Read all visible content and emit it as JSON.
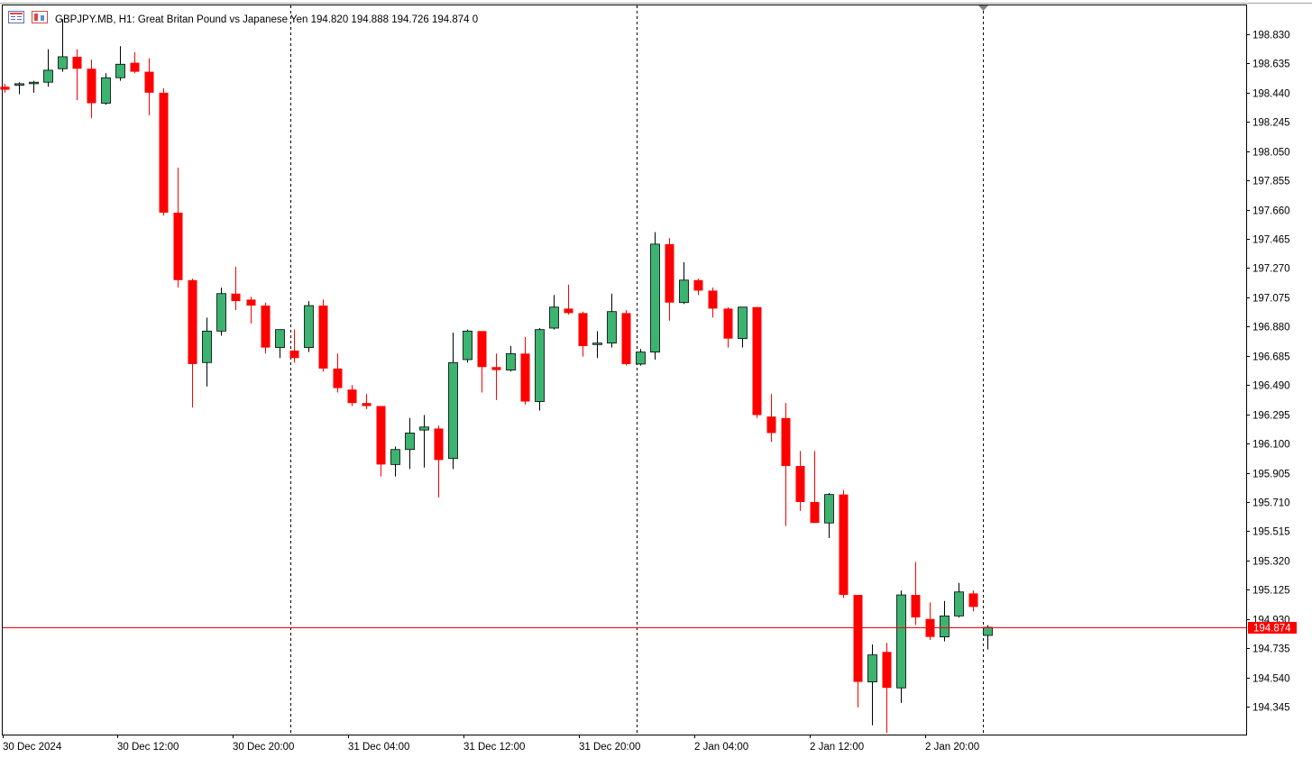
{
  "header": {
    "symbol": "GBPJPY.MB",
    "timeframe": "H1",
    "description": "Great Britan Pound vs Japanese Yen",
    "open": "194.820",
    "high": "194.888",
    "low": "194.726",
    "close": "194.874",
    "volume": "0"
  },
  "current_price_label": "194.874",
  "colors": {
    "bull": "#3cb371",
    "bear": "#ff0000",
    "outline": "#000000",
    "price_line": "#ff0000",
    "grid_separator": "#000000",
    "background": "#ffffff"
  },
  "chart_data": {
    "type": "candlestick",
    "title": "GBPJPY.MB, H1",
    "price_axis_ticks": [
      "198.830",
      "198.635",
      "198.440",
      "198.245",
      "198.050",
      "197.855",
      "197.660",
      "197.465",
      "197.270",
      "197.075",
      "196.880",
      "196.685",
      "196.490",
      "196.295",
      "196.100",
      "195.905",
      "195.710",
      "195.515",
      "195.320",
      "195.125",
      "194.930",
      "194.735",
      "194.540",
      "194.345"
    ],
    "time_axis_ticks": [
      "30 Dec 2024",
      "30 Dec 12:00",
      "30 Dec 20:00",
      "31 Dec 04:00",
      "31 Dec 12:00",
      "31 Dec 20:00",
      "2 Jan 04:00",
      "2 Jan 12:00",
      "2 Jan 20:00"
    ],
    "current_price": 194.874,
    "candles": [
      {
        "o": 198.48,
        "h": 198.5,
        "l": 198.44,
        "c": 198.46
      },
      {
        "o": 198.49,
        "h": 198.51,
        "l": 198.43,
        "c": 198.5
      },
      {
        "o": 198.5,
        "h": 198.52,
        "l": 198.44,
        "c": 198.51
      },
      {
        "o": 198.51,
        "h": 198.73,
        "l": 198.48,
        "c": 198.59
      },
      {
        "o": 198.6,
        "h": 198.93,
        "l": 198.58,
        "c": 198.68
      },
      {
        "o": 198.68,
        "h": 198.73,
        "l": 198.39,
        "c": 198.6
      },
      {
        "o": 198.6,
        "h": 198.66,
        "l": 198.27,
        "c": 198.37
      },
      {
        "o": 198.37,
        "h": 198.57,
        "l": 198.36,
        "c": 198.54
      },
      {
        "o": 198.54,
        "h": 198.75,
        "l": 198.52,
        "c": 198.63
      },
      {
        "o": 198.64,
        "h": 198.71,
        "l": 198.57,
        "c": 198.58
      },
      {
        "o": 198.58,
        "h": 198.67,
        "l": 198.29,
        "c": 198.44
      },
      {
        "o": 198.44,
        "h": 198.47,
        "l": 197.62,
        "c": 197.64
      },
      {
        "o": 197.64,
        "h": 197.94,
        "l": 197.14,
        "c": 197.19
      },
      {
        "o": 197.19,
        "h": 197.2,
        "l": 196.34,
        "c": 196.63
      },
      {
        "o": 196.64,
        "h": 196.94,
        "l": 196.48,
        "c": 196.85
      },
      {
        "o": 196.85,
        "h": 197.14,
        "l": 196.82,
        "c": 197.1
      },
      {
        "o": 197.1,
        "h": 197.28,
        "l": 196.99,
        "c": 197.05
      },
      {
        "o": 197.06,
        "h": 197.08,
        "l": 196.9,
        "c": 197.02
      },
      {
        "o": 197.02,
        "h": 197.04,
        "l": 196.7,
        "c": 196.74
      },
      {
        "o": 196.74,
        "h": 196.86,
        "l": 196.67,
        "c": 196.86
      },
      {
        "o": 196.72,
        "h": 196.86,
        "l": 196.64,
        "c": 196.67
      },
      {
        "o": 196.74,
        "h": 197.05,
        "l": 196.71,
        "c": 197.02
      },
      {
        "o": 197.02,
        "h": 197.06,
        "l": 196.58,
        "c": 196.6
      },
      {
        "o": 196.6,
        "h": 196.7,
        "l": 196.44,
        "c": 196.47
      },
      {
        "o": 196.46,
        "h": 196.49,
        "l": 196.35,
        "c": 196.37
      },
      {
        "o": 196.37,
        "h": 196.43,
        "l": 196.33,
        "c": 196.35
      },
      {
        "o": 196.35,
        "h": 196.35,
        "l": 195.88,
        "c": 195.96
      },
      {
        "o": 195.96,
        "h": 196.08,
        "l": 195.88,
        "c": 196.06
      },
      {
        "o": 196.06,
        "h": 196.27,
        "l": 195.93,
        "c": 196.17
      },
      {
        "o": 196.19,
        "h": 196.29,
        "l": 195.94,
        "c": 196.21
      },
      {
        "o": 196.2,
        "h": 196.22,
        "l": 195.74,
        "c": 195.99
      },
      {
        "o": 196.0,
        "h": 196.84,
        "l": 195.93,
        "c": 196.64
      },
      {
        "o": 196.66,
        "h": 196.86,
        "l": 196.64,
        "c": 196.85
      },
      {
        "o": 196.85,
        "h": 196.85,
        "l": 196.44,
        "c": 196.61
      },
      {
        "o": 196.61,
        "h": 196.7,
        "l": 196.39,
        "c": 196.59
      },
      {
        "o": 196.59,
        "h": 196.75,
        "l": 196.58,
        "c": 196.7
      },
      {
        "o": 196.7,
        "h": 196.81,
        "l": 196.36,
        "c": 196.38
      },
      {
        "o": 196.38,
        "h": 196.87,
        "l": 196.32,
        "c": 196.86
      },
      {
        "o": 196.87,
        "h": 197.09,
        "l": 196.86,
        "c": 197.01
      },
      {
        "o": 197.0,
        "h": 197.16,
        "l": 196.96,
        "c": 196.97
      },
      {
        "o": 196.97,
        "h": 196.98,
        "l": 196.68,
        "c": 196.75
      },
      {
        "o": 196.76,
        "h": 196.85,
        "l": 196.67,
        "c": 196.77
      },
      {
        "o": 196.77,
        "h": 197.1,
        "l": 196.74,
        "c": 196.98
      },
      {
        "o": 196.97,
        "h": 196.99,
        "l": 196.62,
        "c": 196.63
      },
      {
        "o": 196.63,
        "h": 196.73,
        "l": 196.62,
        "c": 196.71
      },
      {
        "o": 196.71,
        "h": 197.51,
        "l": 196.66,
        "c": 197.43
      },
      {
        "o": 197.43,
        "h": 197.47,
        "l": 196.92,
        "c": 197.04
      },
      {
        "o": 197.04,
        "h": 197.31,
        "l": 197.03,
        "c": 197.19
      },
      {
        "o": 197.19,
        "h": 197.2,
        "l": 197.09,
        "c": 197.12
      },
      {
        "o": 197.12,
        "h": 197.14,
        "l": 196.94,
        "c": 197.0
      },
      {
        "o": 197.0,
        "h": 197.01,
        "l": 196.74,
        "c": 196.8
      },
      {
        "o": 196.8,
        "h": 197.01,
        "l": 196.74,
        "c": 197.01
      },
      {
        "o": 197.01,
        "h": 197.01,
        "l": 196.27,
        "c": 196.29
      },
      {
        "o": 196.28,
        "h": 196.43,
        "l": 196.11,
        "c": 196.17
      },
      {
        "o": 196.27,
        "h": 196.37,
        "l": 195.55,
        "c": 195.95
      },
      {
        "o": 195.95,
        "h": 196.05,
        "l": 195.65,
        "c": 195.71
      },
      {
        "o": 195.71,
        "h": 196.05,
        "l": 195.57,
        "c": 195.57
      },
      {
        "o": 195.57,
        "h": 195.77,
        "l": 195.47,
        "c": 195.76
      },
      {
        "o": 195.76,
        "h": 195.79,
        "l": 195.07,
        "c": 195.09
      },
      {
        "o": 195.09,
        "h": 195.09,
        "l": 194.34,
        "c": 194.51
      },
      {
        "o": 194.51,
        "h": 194.76,
        "l": 194.22,
        "c": 194.69
      },
      {
        "o": 194.71,
        "h": 194.77,
        "l": 194.17,
        "c": 194.47
      },
      {
        "o": 194.47,
        "h": 195.12,
        "l": 194.37,
        "c": 195.09
      },
      {
        "o": 195.09,
        "h": 195.31,
        "l": 194.89,
        "c": 194.94
      },
      {
        "o": 194.93,
        "h": 195.04,
        "l": 194.79,
        "c": 194.81
      },
      {
        "o": 194.81,
        "h": 195.05,
        "l": 194.78,
        "c": 194.95
      },
      {
        "o": 194.95,
        "h": 195.17,
        "l": 194.94,
        "c": 195.11
      },
      {
        "o": 195.1,
        "h": 195.12,
        "l": 194.98,
        "c": 195.01
      },
      {
        "o": 194.82,
        "h": 194.888,
        "l": 194.726,
        "c": 194.874
      }
    ]
  }
}
